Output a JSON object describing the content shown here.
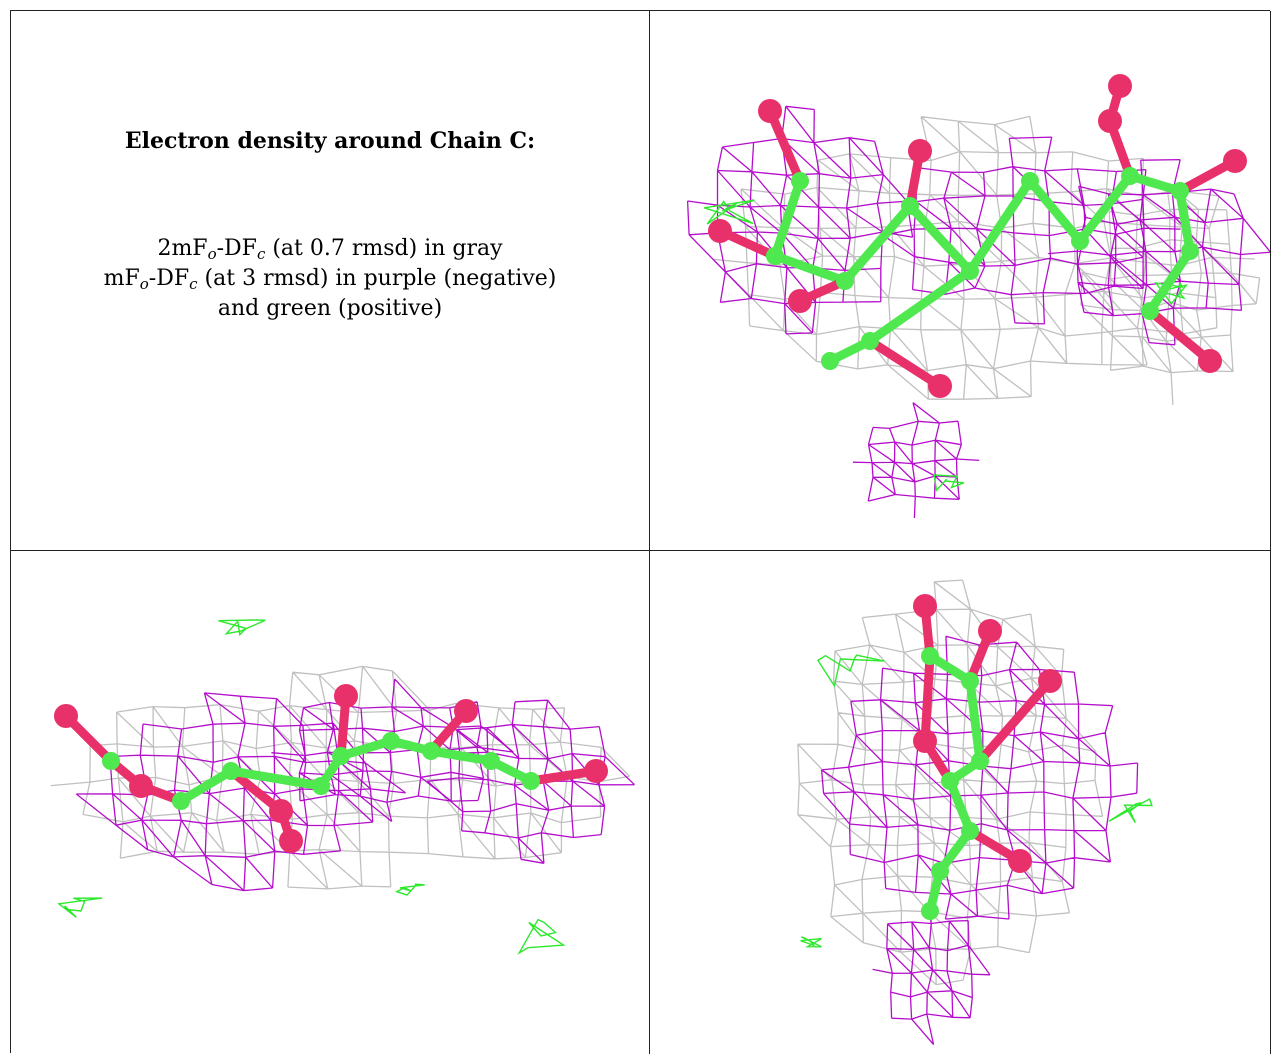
{
  "caption": {
    "title": "Electron density around Chain C:",
    "line1_pre": "2mF",
    "line1_o": "o",
    "line1_mid": "-DF",
    "line1_c": "c",
    "line1_post": " (at 0.7 rmsd) in gray",
    "line2_pre": "mF",
    "line2_o": "o",
    "line2_mid": "-DF",
    "line2_c": "c",
    "line2_post": " (at 3 rmsd) in purple (negative)",
    "line3": "and green (positive)"
  },
  "colors": {
    "mesh_gray": "#bdbdbd",
    "mesh_purple": "#b000c8",
    "mesh_green": "#2ee82e",
    "carbon": "#4fe84f",
    "oxygen": "#e8306a"
  },
  "views": [
    {
      "name": "view-top-right"
    },
    {
      "name": "view-bottom-left"
    },
    {
      "name": "view-bottom-right"
    }
  ]
}
